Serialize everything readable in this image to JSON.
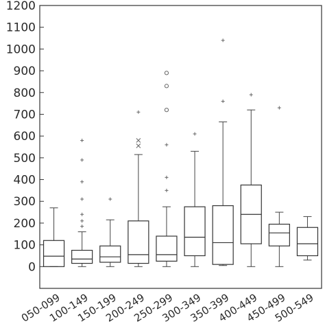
{
  "chart_data": {
    "type": "box",
    "title": "",
    "xlabel": "",
    "ylabel": "",
    "ylim": [
      -100,
      1200
    ],
    "yticks": [
      0,
      100,
      200,
      300,
      400,
      500,
      600,
      700,
      800,
      900,
      1000,
      1100,
      1200
    ],
    "categories": [
      "050-099",
      "100-149",
      "150-199",
      "200-249",
      "250-299",
      "300-349",
      "350-399",
      "400-449",
      "450-499",
      "500-549"
    ],
    "boxes": [
      {
        "category": "050-099",
        "low": 0,
        "q1": 0,
        "median": 48,
        "q3": 120,
        "high": 270,
        "outliers": []
      },
      {
        "category": "100-149",
        "low": 0,
        "q1": 15,
        "median": 35,
        "q3": 75,
        "high": 160,
        "outliers": [
          {
            "y": 185,
            "m": "+"
          },
          {
            "y": 210,
            "m": "+"
          },
          {
            "y": 240,
            "m": "+"
          },
          {
            "y": 310,
            "m": "+"
          },
          {
            "y": 390,
            "m": "+"
          },
          {
            "y": 490,
            "m": "+"
          },
          {
            "y": 580,
            "m": "+"
          }
        ]
      },
      {
        "category": "150-199",
        "low": 0,
        "q1": 20,
        "median": 45,
        "q3": 95,
        "high": 215,
        "outliers": [
          {
            "y": 310,
            "m": "+"
          }
        ]
      },
      {
        "category": "200-249",
        "low": 0,
        "q1": 15,
        "median": 55,
        "q3": 210,
        "high": 515,
        "outliers": [
          {
            "y": 555,
            "m": "x"
          },
          {
            "y": 580,
            "m": "x"
          },
          {
            "y": 710,
            "m": "+"
          }
        ]
      },
      {
        "category": "250-299",
        "low": 0,
        "q1": 25,
        "median": 55,
        "q3": 140,
        "high": 275,
        "outliers": [
          {
            "y": 350,
            "m": "+"
          },
          {
            "y": 410,
            "m": "+"
          },
          {
            "y": 560,
            "m": "+"
          },
          {
            "y": 720,
            "m": "o"
          },
          {
            "y": 830,
            "m": "o"
          },
          {
            "y": 890,
            "m": "o"
          }
        ]
      },
      {
        "category": "300-349",
        "low": 0,
        "q1": 50,
        "median": 135,
        "q3": 275,
        "high": 530,
        "outliers": [
          {
            "y": 610,
            "m": "+"
          }
        ]
      },
      {
        "category": "350-399",
        "low": 5,
        "q1": 10,
        "median": 110,
        "q3": 280,
        "high": 665,
        "outliers": [
          {
            "y": 760,
            "m": "+"
          },
          {
            "y": 1040,
            "m": "+"
          }
        ]
      },
      {
        "category": "400-449",
        "low": 0,
        "q1": 105,
        "median": 240,
        "q3": 375,
        "high": 720,
        "outliers": [
          {
            "y": 790,
            "m": "+"
          }
        ]
      },
      {
        "category": "450-499",
        "low": 0,
        "q1": 95,
        "median": 155,
        "q3": 195,
        "high": 250,
        "outliers": [
          {
            "y": 730,
            "m": "+"
          }
        ]
      },
      {
        "category": "500-549",
        "low": 30,
        "q1": 50,
        "median": 105,
        "q3": 180,
        "high": 230,
        "outliers": []
      }
    ]
  }
}
